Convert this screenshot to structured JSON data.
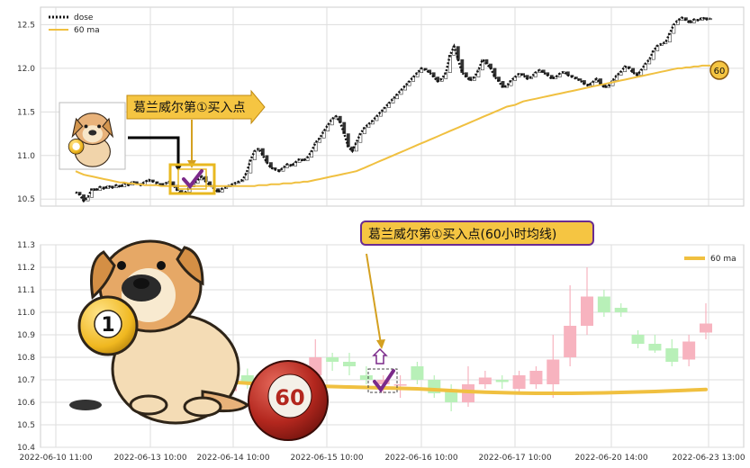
{
  "colors": {
    "dose_line": "#111111",
    "ma_line": "#f0c040",
    "candle_up": "#f7b3bf",
    "candle_down": "#b8f0b8",
    "candle_dark": "#333333",
    "grid": "#dddddd",
    "callout_fill": "#f5c542",
    "callout_border": "#6a2c91",
    "check_mark": "#7b2a8a",
    "badge_fill": "#f5c542"
  },
  "icons": [
    "dog-mascot-icon",
    "billiard-ball-1-icon",
    "billiard-ball-60-icon",
    "check-mark-icon",
    "up-arrow-icon"
  ],
  "top_panel": {
    "callout_label": "葛兰威尔第①买入点",
    "badge_label": "60",
    "chart_data": {
      "type": "line",
      "legend": [
        {
          "name": "dose",
          "style": "dotted"
        },
        {
          "name": "60 ma",
          "style": "solid"
        }
      ],
      "legend_position": "top-left",
      "ylim": [
        10.42,
        12.7
      ],
      "yticks": [
        10.5,
        11.0,
        11.5,
        12.0,
        12.5
      ],
      "series": [
        {
          "name": "dose",
          "values": [
            10.58,
            10.55,
            10.48,
            10.52,
            10.62,
            10.6,
            10.64,
            10.62,
            10.65,
            10.63,
            10.66,
            10.64,
            10.68,
            10.66,
            10.7,
            10.68,
            10.66,
            10.7,
            10.72,
            10.7,
            10.68,
            10.66,
            10.68,
            10.7,
            10.66,
            10.6,
            10.56,
            10.58,
            10.64,
            10.68,
            10.72,
            10.76,
            10.7,
            10.66,
            10.62,
            10.58,
            10.62,
            10.64,
            10.66,
            10.68,
            10.7,
            10.72,
            10.8,
            10.95,
            11.05,
            11.08,
            11.0,
            10.92,
            10.86,
            10.84,
            10.82,
            10.86,
            10.9,
            10.88,
            10.92,
            10.96,
            10.94,
            10.98,
            11.05,
            11.15,
            11.2,
            11.28,
            11.35,
            11.42,
            11.45,
            11.38,
            11.25,
            11.1,
            11.05,
            11.15,
            11.25,
            11.32,
            11.36,
            11.4,
            11.45,
            11.5,
            11.55,
            11.6,
            11.65,
            11.7,
            11.75,
            11.8,
            11.85,
            11.9,
            11.95,
            12.0,
            11.98,
            11.95,
            11.9,
            11.85,
            11.88,
            11.95,
            12.15,
            12.25,
            12.1,
            11.95,
            11.9,
            11.86,
            11.9,
            11.98,
            12.1,
            12.05,
            12.0,
            11.9,
            11.85,
            11.78,
            11.8,
            11.86,
            11.9,
            11.94,
            11.92,
            11.88,
            11.9,
            11.95,
            11.98,
            11.95,
            11.92,
            11.88,
            11.9,
            11.94,
            11.96,
            11.92,
            11.9,
            11.88,
            11.86,
            11.82,
            11.8,
            11.84,
            11.88,
            11.82,
            11.78,
            11.8,
            11.86,
            11.92,
            11.96,
            12.02,
            12.0,
            11.95,
            11.92,
            11.98,
            12.05,
            12.1,
            12.2,
            12.26,
            12.28,
            12.3,
            12.4,
            12.5,
            12.55,
            12.58,
            12.55,
            12.52,
            12.56,
            12.55,
            12.58,
            12.56,
            12.57
          ]
        },
        {
          "name": "60 ma",
          "values": [
            10.82,
            10.8,
            10.78,
            10.77,
            10.76,
            10.75,
            10.74,
            10.73,
            10.72,
            10.71,
            10.7,
            10.69,
            10.69,
            10.68,
            10.68,
            10.67,
            10.67,
            10.66,
            10.66,
            10.66,
            10.66,
            10.65,
            10.65,
            10.65,
            10.65,
            10.65,
            10.65,
            10.65,
            10.65,
            10.65,
            10.65,
            10.65,
            10.65,
            10.65,
            10.65,
            10.65,
            10.65,
            10.65,
            10.65,
            10.65,
            10.65,
            10.65,
            10.65,
            10.65,
            10.65,
            10.66,
            10.66,
            10.66,
            10.67,
            10.67,
            10.67,
            10.68,
            10.68,
            10.68,
            10.69,
            10.69,
            10.7,
            10.7,
            10.71,
            10.72,
            10.73,
            10.74,
            10.75,
            10.76,
            10.77,
            10.78,
            10.79,
            10.8,
            10.81,
            10.82,
            10.84,
            10.86,
            10.88,
            10.9,
            10.92,
            10.94,
            10.96,
            10.98,
            11.0,
            11.02,
            11.04,
            11.06,
            11.08,
            11.1,
            11.12,
            11.14,
            11.16,
            11.18,
            11.2,
            11.22,
            11.24,
            11.26,
            11.28,
            11.3,
            11.32,
            11.34,
            11.36,
            11.38,
            11.4,
            11.42,
            11.44,
            11.46,
            11.48,
            11.5,
            11.52,
            11.54,
            11.56,
            11.57,
            11.58,
            11.6,
            11.62,
            11.63,
            11.64,
            11.65,
            11.66,
            11.67,
            11.68,
            11.69,
            11.7,
            11.71,
            11.72,
            11.73,
            11.74,
            11.75,
            11.76,
            11.77,
            11.78,
            11.79,
            11.8,
            11.81,
            11.82,
            11.83,
            11.84,
            11.85,
            11.86,
            11.87,
            11.88,
            11.89,
            11.9,
            11.91,
            11.92,
            11.93,
            11.94,
            11.95,
            11.96,
            11.97,
            11.98,
            11.99,
            12.0,
            12.0,
            12.01,
            12.01,
            12.02,
            12.02,
            12.03,
            12.03,
            12.03
          ]
        }
      ]
    }
  },
  "bottom_panel": {
    "callout_label": "葛兰威尔第①买入点(60小时均线)",
    "chart_data": {
      "type": "candlestick",
      "legend": [
        {
          "name": "60 ma",
          "style": "solid"
        }
      ],
      "legend_position": "top-right",
      "ylim": [
        10.4,
        11.3
      ],
      "yticks": [
        10.4,
        10.5,
        10.6,
        10.7,
        10.8,
        10.9,
        11.0,
        11.1,
        11.2,
        11.3
      ],
      "xticks": [
        "2022-06-10 11:00",
        "2022-06-13 10:00",
        "2022-06-14 10:00",
        "2022-06-15 10:00",
        "2022-06-16 10:00",
        "2022-06-17 10:00",
        "2022-06-20 14:00",
        "2022-06-23 13:00"
      ],
      "candles": [
        {
          "open": 10.65,
          "high": 10.76,
          "low": 10.62,
          "close": 10.73
        },
        {
          "open": 10.72,
          "high": 10.75,
          "low": 10.66,
          "close": 10.68
        },
        {
          "open": 10.68,
          "high": 10.72,
          "low": 10.64,
          "close": 10.7
        },
        {
          "open": 10.7,
          "high": 10.74,
          "low": 10.66,
          "close": 10.69
        },
        {
          "open": 10.68,
          "high": 10.76,
          "low": 10.65,
          "close": 10.74
        },
        {
          "open": 10.72,
          "high": 10.88,
          "low": 10.7,
          "close": 10.8
        },
        {
          "open": 10.8,
          "high": 10.82,
          "low": 10.74,
          "close": 10.78
        },
        {
          "open": 10.78,
          "high": 10.82,
          "low": 10.72,
          "close": 10.76
        },
        {
          "open": 10.72,
          "high": 10.76,
          "low": 10.68,
          "close": 10.7
        },
        {
          "open": 10.68,
          "high": 10.72,
          "low": 10.64,
          "close": 10.7
        },
        {
          "open": 10.68,
          "high": 10.72,
          "low": 10.62,
          "close": 10.68
        },
        {
          "open": 10.76,
          "high": 10.78,
          "low": 10.68,
          "close": 10.7
        },
        {
          "open": 10.7,
          "high": 10.72,
          "low": 10.62,
          "close": 10.64
        },
        {
          "open": 10.65,
          "high": 10.68,
          "low": 10.56,
          "close": 10.6
        },
        {
          "open": 10.6,
          "high": 10.76,
          "low": 10.58,
          "close": 10.68
        },
        {
          "open": 10.68,
          "high": 10.74,
          "low": 10.66,
          "close": 10.71
        },
        {
          "open": 10.7,
          "high": 10.72,
          "low": 10.66,
          "close": 10.69
        },
        {
          "open": 10.66,
          "high": 10.74,
          "low": 10.64,
          "close": 10.72
        },
        {
          "open": 10.68,
          "high": 10.76,
          "low": 10.66,
          "close": 10.74
        },
        {
          "open": 10.68,
          "high": 10.9,
          "low": 10.62,
          "close": 10.79
        },
        {
          "open": 10.8,
          "high": 11.12,
          "low": 10.76,
          "close": 10.94
        },
        {
          "open": 10.94,
          "high": 11.2,
          "low": 10.9,
          "close": 11.07
        },
        {
          "open": 11.07,
          "high": 11.1,
          "low": 10.98,
          "close": 11.0
        },
        {
          "open": 11.02,
          "high": 11.04,
          "low": 10.98,
          "close": 11.0
        },
        {
          "open": 10.9,
          "high": 10.92,
          "low": 10.84,
          "close": 10.86
        },
        {
          "open": 10.86,
          "high": 10.9,
          "low": 10.82,
          "close": 10.83
        },
        {
          "open": 10.84,
          "high": 10.88,
          "low": 10.76,
          "close": 10.78
        },
        {
          "open": 10.79,
          "high": 10.9,
          "low": 10.76,
          "close": 10.87
        },
        {
          "open": 10.91,
          "high": 11.04,
          "low": 10.88,
          "close": 10.95
        }
      ],
      "series": [
        {
          "name": "60 ma",
          "values": [
            10.69,
            10.685,
            10.68,
            10.678,
            10.675,
            10.672,
            10.67,
            10.668,
            10.666,
            10.664,
            10.662,
            10.66,
            10.656,
            10.652,
            10.648,
            10.645,
            10.643,
            10.641,
            10.64,
            10.64,
            10.64,
            10.641,
            10.642,
            10.644,
            10.646,
            10.648,
            10.651,
            10.654,
            10.657
          ]
        }
      ]
    }
  }
}
